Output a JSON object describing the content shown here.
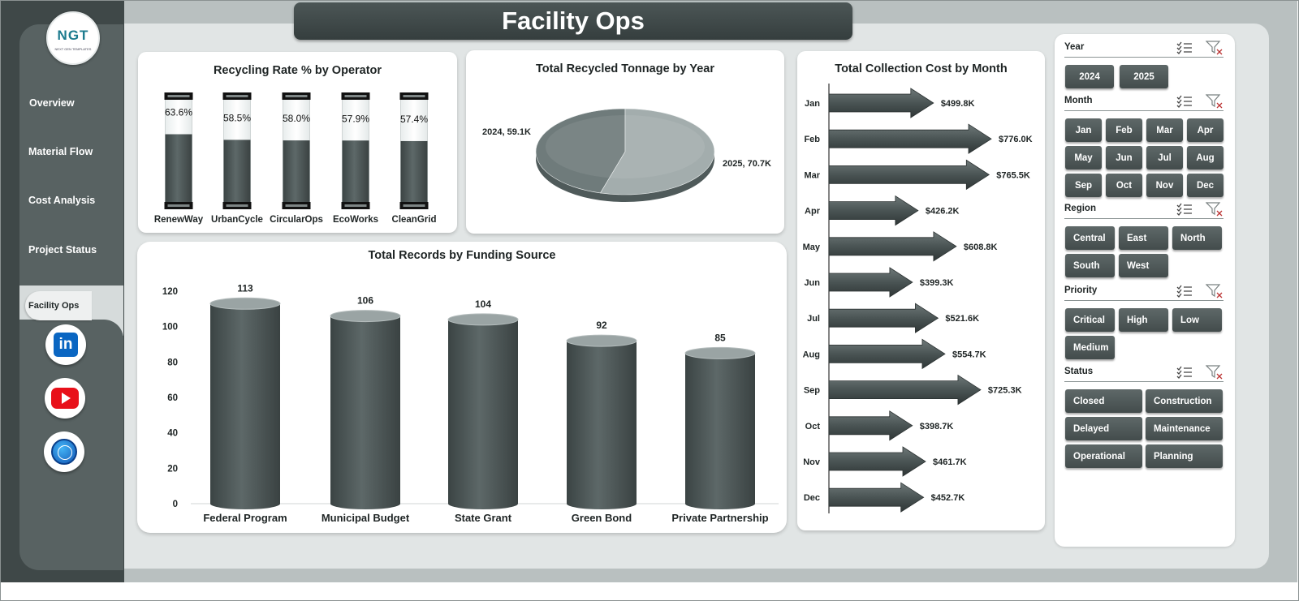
{
  "brand": {
    "logo_text": "NGT",
    "logo_sub": "NEXT GEN TEMPLATES"
  },
  "page_title": "Facility Ops",
  "sidebar": {
    "items": [
      {
        "label": "Overview"
      },
      {
        "label": "Material Flow"
      },
      {
        "label": "Cost Analysis"
      },
      {
        "label": "Project Status"
      },
      {
        "label": "Facility Ops",
        "active": true
      }
    ],
    "social": [
      "linkedin-icon",
      "youtube-icon",
      "globe-icon"
    ]
  },
  "slicers": [
    {
      "name": "Year",
      "options": [
        "2024",
        "2025"
      ]
    },
    {
      "name": "Month",
      "options": [
        "Jan",
        "Feb",
        "Mar",
        "Apr",
        "May",
        "Jun",
        "Jul",
        "Aug",
        "Sep",
        "Oct",
        "Nov",
        "Dec"
      ]
    },
    {
      "name": "Region",
      "options": [
        "Central",
        "East",
        "North",
        "South",
        "West"
      ]
    },
    {
      "name": "Priority",
      "options": [
        "Critical",
        "High",
        "Low",
        "Medium"
      ]
    },
    {
      "name": "Status",
      "options": [
        "Closed",
        "Construction",
        "Delayed",
        "Maintenance",
        "Operational",
        "Planning"
      ]
    }
  ],
  "colors": {
    "dark": "#4a5454",
    "sidebar": "#586262",
    "canvas": "#e1e5e5",
    "pie_light": "#a3adad",
    "pie_dark": "#6f7b7b"
  },
  "chart_data": [
    {
      "id": "recycling-rate",
      "type": "bar",
      "title": "Recycling Rate % by Operator",
      "categories": [
        "RenewWay",
        "UrbanCycle",
        "CircularOps",
        "EcoWorks",
        "CleanGrid"
      ],
      "values": [
        63.6,
        58.5,
        58.0,
        57.9,
        57.4
      ],
      "labels": [
        "63.6%",
        "58.5%",
        "58.0%",
        "57.9%",
        "57.4%"
      ],
      "ylim": [
        0,
        100
      ]
    },
    {
      "id": "recycled-tonnage",
      "type": "pie",
      "title": "Total Recycled Tonnage by Year",
      "categories": [
        "2024",
        "2025"
      ],
      "values": [
        59.1,
        70.7
      ],
      "labels": [
        "2024, 59.1K",
        "2025, 70.7K"
      ]
    },
    {
      "id": "collection-cost",
      "type": "bar",
      "orientation": "horizontal",
      "title": "Total Collection Cost by Month",
      "categories": [
        "Jan",
        "Feb",
        "Mar",
        "Apr",
        "May",
        "Jun",
        "Jul",
        "Aug",
        "Sep",
        "Oct",
        "Nov",
        "Dec"
      ],
      "values": [
        499.8,
        776.0,
        765.5,
        426.2,
        608.8,
        399.3,
        521.6,
        554.7,
        725.3,
        398.7,
        461.7,
        452.7
      ],
      "labels": [
        "$499.8K",
        "$776.0K",
        "$765.5K",
        "$426.2K",
        "$608.8K",
        "$399.3K",
        "$521.6K",
        "$554.7K",
        "$725.3K",
        "$398.7K",
        "$461.7K",
        "$452.7K"
      ]
    },
    {
      "id": "records-funding",
      "type": "bar",
      "title": "Total Records by Funding Source",
      "categories": [
        "Federal Program",
        "Municipal Budget",
        "State Grant",
        "Green Bond",
        "Private Partnership"
      ],
      "values": [
        113,
        106,
        104,
        92,
        85
      ],
      "labels": [
        "113",
        "106",
        "104",
        "92",
        "85"
      ],
      "ylim": [
        0,
        120
      ],
      "yticks": [
        "0",
        "20",
        "40",
        "60",
        "80",
        "100",
        "120"
      ],
      "grid": false
    }
  ]
}
